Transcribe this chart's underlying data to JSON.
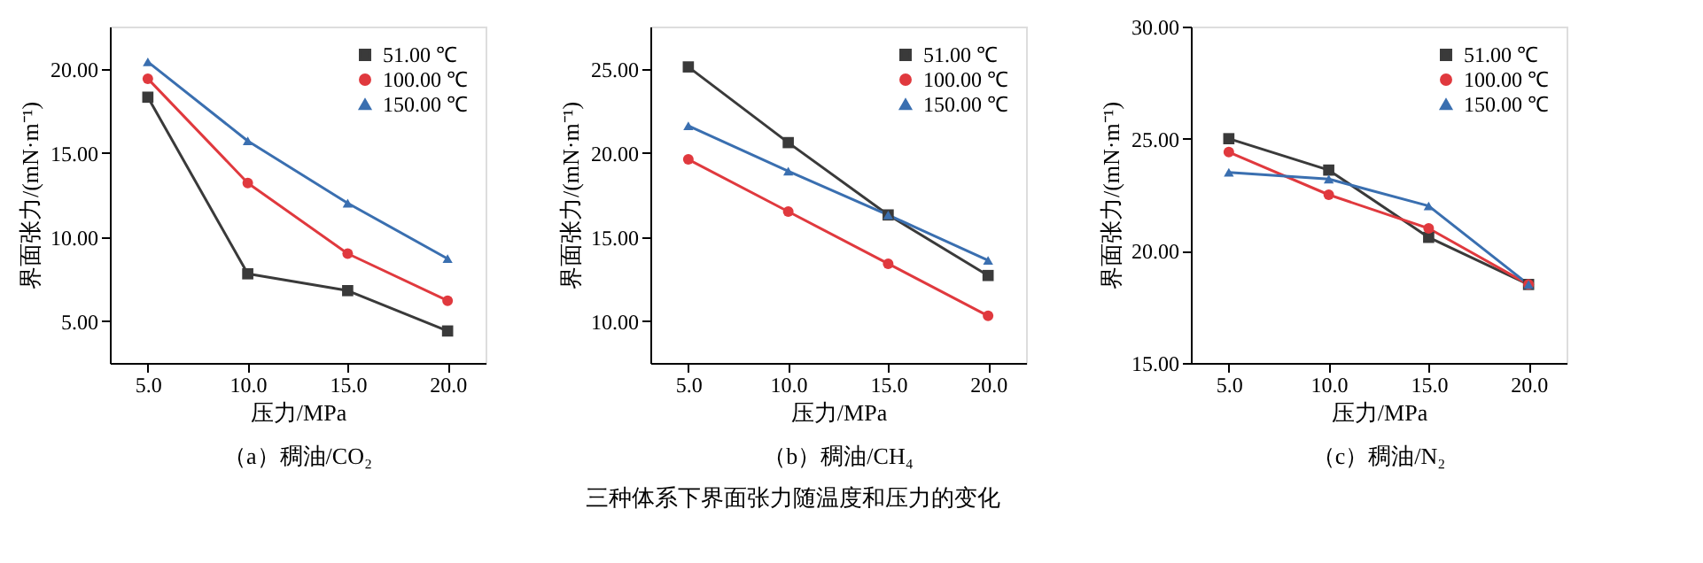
{
  "chart_data": [
    {
      "type": "line",
      "title": "（a）稠油/CO₂",
      "xlabel": "压力/MPa",
      "ylabel": "界面张力/(mN·m⁻¹)",
      "annotations": [
        "三种体系下界面张力随温度和压力的变化"
      ],
      "x": [
        5,
        10,
        15,
        20
      ],
      "xlim": [
        3.1,
        21.9
      ],
      "xticks": [
        {
          "value": 5,
          "label": "5.0"
        },
        {
          "value": 10,
          "label": "10.0"
        },
        {
          "value": 15,
          "label": "15.0"
        },
        {
          "value": 20,
          "label": "20.0"
        }
      ],
      "ylim": [
        2.5,
        22.5
      ],
      "yticks": [
        {
          "value": 5,
          "label": "5.00"
        },
        {
          "value": 10,
          "label": "10.00"
        },
        {
          "value": 15,
          "label": "15.00"
        },
        {
          "value": 20,
          "label": "20.00"
        }
      ],
      "grid": false,
      "legend": "top right",
      "line_style": "solid",
      "series": [
        {
          "name": "51.00 ℃",
          "color": "#3a3a3a",
          "marker": "square",
          "values": [
            18.3,
            7.8,
            6.8,
            4.4
          ]
        },
        {
          "name": "100.00 ℃",
          "color": "#e0393e",
          "marker": "circle",
          "values": [
            19.4,
            13.2,
            9.0,
            6.2
          ]
        },
        {
          "name": "150.00 ℃",
          "color": "#3a6fb0",
          "marker": "triangle",
          "values": [
            20.4,
            15.7,
            12.0,
            8.7
          ]
        }
      ]
    },
    {
      "type": "line",
      "title": "（b）稠油/CH₄",
      "xlabel": "压力/MPa",
      "ylabel": "界面张力/(mN·m⁻¹)",
      "x": [
        5,
        10,
        15,
        20
      ],
      "xlim": [
        3.1,
        21.9
      ],
      "xticks": [
        {
          "value": 5,
          "label": "5.0"
        },
        {
          "value": 10,
          "label": "10.0"
        },
        {
          "value": 15,
          "label": "15.0"
        },
        {
          "value": 20,
          "label": "20.0"
        }
      ],
      "ylim": [
        7.5,
        27.5
      ],
      "yticks": [
        {
          "value": 10,
          "label": "10.00"
        },
        {
          "value": 15,
          "label": "15.00"
        },
        {
          "value": 20,
          "label": "20.00"
        },
        {
          "value": 25,
          "label": "25.00"
        }
      ],
      "grid": false,
      "legend": "top right",
      "line_style": "solid",
      "series": [
        {
          "name": "51.00 ℃",
          "color": "#3a3a3a",
          "marker": "square",
          "values": [
            25.1,
            20.6,
            16.3,
            12.7
          ]
        },
        {
          "name": "100.00 ℃",
          "color": "#e0393e",
          "marker": "circle",
          "values": [
            19.6,
            16.5,
            13.4,
            10.3
          ]
        },
        {
          "name": "150.00 ℃",
          "color": "#3a6fb0",
          "marker": "triangle",
          "values": [
            21.6,
            18.9,
            16.3,
            13.6
          ]
        }
      ]
    },
    {
      "type": "line",
      "title": "（c）稠油/N₂",
      "xlabel": "压力/MPa",
      "ylabel": "界面张力/(mN·m⁻¹)",
      "x": [
        5,
        10,
        15,
        20
      ],
      "xlim": [
        3.1,
        21.9
      ],
      "xticks": [
        {
          "value": 5,
          "label": "5.0"
        },
        {
          "value": 10,
          "label": "10.0"
        },
        {
          "value": 15,
          "label": "15.0"
        },
        {
          "value": 20,
          "label": "20.0"
        }
      ],
      "ylim": [
        15,
        30
      ],
      "yticks": [
        {
          "value": 15,
          "label": "15.00"
        },
        {
          "value": 20,
          "label": "20.00"
        },
        {
          "value": 25,
          "label": "25.00"
        },
        {
          "value": 30,
          "label": "30.00"
        }
      ],
      "grid": false,
      "legend": "top right",
      "line_style": "solid",
      "series": [
        {
          "name": "51.00 ℃",
          "color": "#3a3a3a",
          "marker": "square",
          "values": [
            25.0,
            23.6,
            20.6,
            18.5
          ]
        },
        {
          "name": "100.00 ℃",
          "color": "#e0393e",
          "marker": "circle",
          "values": [
            24.4,
            22.5,
            21.0,
            18.5
          ]
        },
        {
          "name": "150.00 ℃",
          "color": "#3a6fb0",
          "marker": "triangle",
          "values": [
            23.5,
            23.2,
            22.0,
            18.5
          ]
        }
      ]
    }
  ]
}
